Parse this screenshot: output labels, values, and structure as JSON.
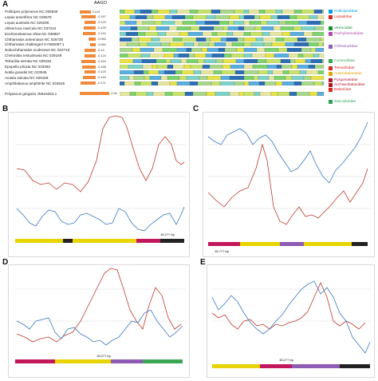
{
  "panelA": {
    "letter": "A",
    "header": "AAGO",
    "species": [
      {
        "name": "Pollicipes polymerus NC 005936",
        "value": "0.124"
      },
      {
        "name": "Lepas anserifera NC 026576",
        "value": "-0.167"
      },
      {
        "name": "Lepas australis NC 025295",
        "value": "-0.123"
      },
      {
        "name": "Altiverruca navicula NC 037244",
        "value": "-0.139"
      },
      {
        "name": "Eochionelasmus ohtai NC 036957",
        "value": "-0.144"
      },
      {
        "name": "Chthamalus antennatus NC 026730",
        "value": "-0.083"
      },
      {
        "name": "Chthamalus challengeri KY865097.1",
        "value": "-0.062"
      },
      {
        "name": "Nobochthamalus scabrosus NC 022716",
        "value": "-0.13"
      },
      {
        "name": "Chelonibia testudinaria NC 029169",
        "value": "-0.124"
      },
      {
        "name": "Tetraclita serrata NC 029154",
        "value": "-0.164"
      },
      {
        "name": "Epopella plicata NC 033393",
        "value": "-0.158"
      },
      {
        "name": "Notila grandis NC 023945",
        "value": "-0.129"
      },
      {
        "name": "Acasta sulcata NC 029168",
        "value": "-0.149"
      },
      {
        "name": "Amphibalanus amphitrite NC 034525",
        "value": "-0.171"
      },
      {
        "name": "Polyascus gregaria JN616263.1",
        "value": "0.34"
      }
    ],
    "families": [
      {
        "name": "Pollicipedidae",
        "color": "#00a0e0"
      },
      {
        "name": "Lepadidae",
        "color": "#d8271b"
      },
      {
        "name": "Verrucidae",
        "color": "#1a8f3a"
      },
      {
        "name": "Pachylasmatidae",
        "color": "#b24aa8"
      },
      {
        "name": "Chthamalidae",
        "color": "#8e5bb5"
      },
      {
        "name": "Coronulidae",
        "color": "#34a853"
      },
      {
        "name": "Tetraclitidae",
        "color": "#d8271b"
      },
      {
        "name": "Austrobalanidae",
        "color": "#e0a400"
      },
      {
        "name": "Pyrgomatidae",
        "color": "#b2182b"
      },
      {
        "name": "Archaeobalanidae",
        "color": "#b2182b"
      },
      {
        "name": "Balanidae",
        "color": "#d8271b"
      },
      {
        "name": "Sacculinidae",
        "color": "#2e9e5b"
      }
    ]
  },
  "panelB": {
    "letter": "B",
    "scale": "15,2?? bp"
  },
  "panelC": {
    "letter": "C",
    "scale": "15,??? bp"
  },
  "panelD": {
    "letter": "D",
    "scale": "15,0?? bp"
  },
  "panelE": {
    "letter": "E",
    "scale": "15,2?? bp"
  },
  "colors": {
    "red": "#c0392b",
    "blue": "#3b78c2",
    "orangeBar": "#f08a3c"
  }
}
